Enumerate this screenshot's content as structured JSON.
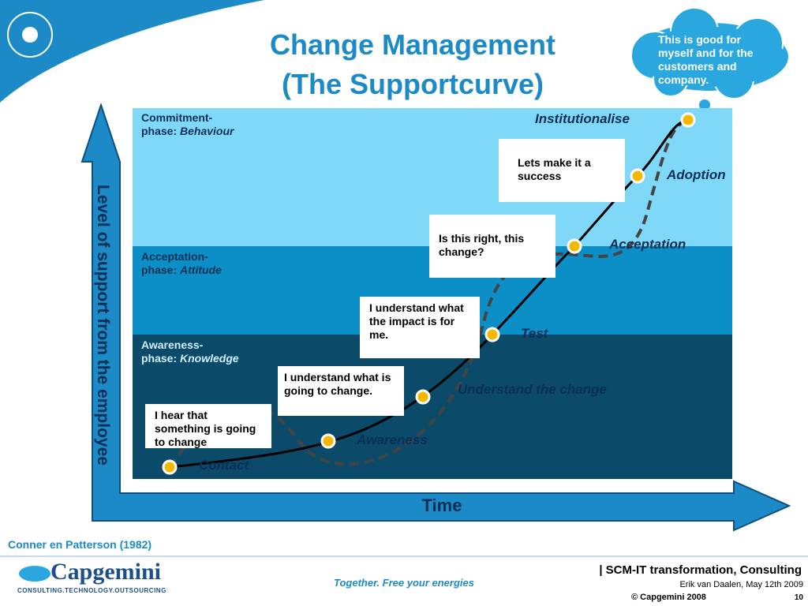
{
  "title": {
    "line1": "Change Management",
    "line2": "(The Supportcurve)"
  },
  "thought_bubble": "This is good for myself and for the customers and company.",
  "phases": [
    {
      "line1": "Commitment-",
      "line2": "phase:",
      "focus": "Behaviour"
    },
    {
      "line1": "Acceptation-",
      "line2": "phase:",
      "focus": "Attitude"
    },
    {
      "line1": "Awareness-",
      "line2": "phase:",
      "focus": "Knowledge"
    }
  ],
  "stages": [
    "Contact",
    "Awareness",
    "Understand the change",
    "Test",
    "Acceptation",
    "Adoption",
    "Institutionalise"
  ],
  "quotes": [
    "I hear that something is going to change",
    "I understand what is going to change.",
    "I understand what the impact is for me.",
    "Is this right, this change?",
    "Lets make it a success"
  ],
  "axes": {
    "y": "Level of support from the employee",
    "x": "Time"
  },
  "source": "Conner en Patterson (1982)",
  "footer": {
    "logo": "Capgemini",
    "logo_sub": "CONSULTING.TECHNOLOGY.OUTSOURCING",
    "tagline": "Together. Free your energies",
    "project": "| SCM-IT transformation, Consulting",
    "author": "Erik van Daalen, May 12th 2009",
    "copyright": "© Capgemini 2008",
    "page": "10"
  }
}
